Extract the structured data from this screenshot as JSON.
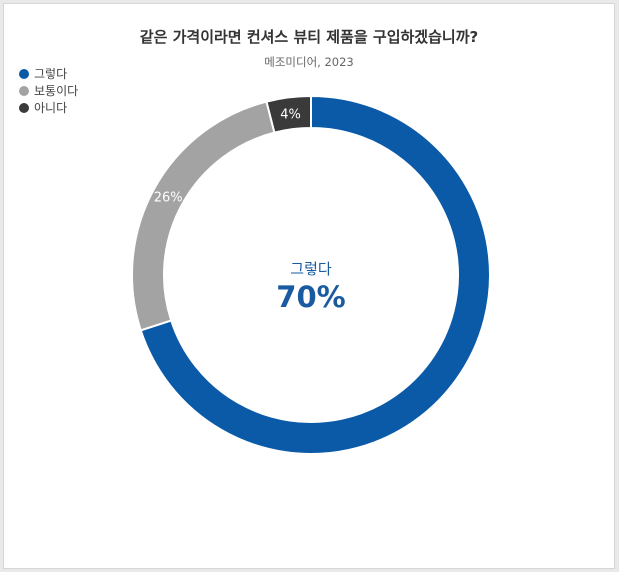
{
  "title": "같은 가격이라면 컨셔스 뷰티 제품을 구입하겠습니까?",
  "subtitle": "메조미디어, 2023",
  "center": {
    "label": "그렇다",
    "value": "70%"
  },
  "colors": {
    "center_text": "#1a5aa0"
  },
  "chart_data": {
    "type": "pie",
    "variant": "donut",
    "title": "같은 가격이라면 컨셔스 뷰티 제품을 구입하겠습니까?",
    "subtitle": "메조미디어, 2023",
    "legend_position": "top-left",
    "categories": [
      "그렇다",
      "보통이다",
      "아니다"
    ],
    "values": [
      70,
      26,
      4
    ],
    "labels": [
      "70%",
      "26%",
      "4%"
    ],
    "colors": [
      "#0a5aa8",
      "#a3a3a3",
      "#3a3a3a"
    ]
  }
}
